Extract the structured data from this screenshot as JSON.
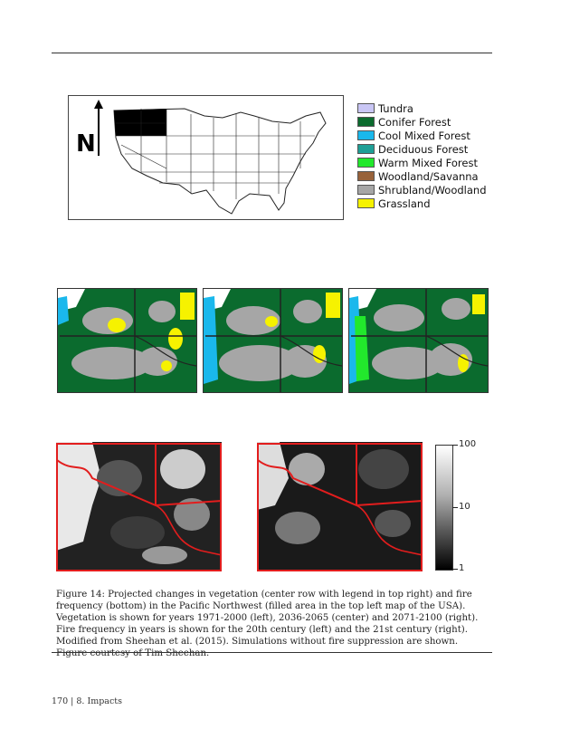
{
  "legend": {
    "items": [
      {
        "label": "Tundra",
        "color": "#c9c6f5"
      },
      {
        "label": "Conifer Forest",
        "color": "#0b6b2e"
      },
      {
        "label": "Cool Mixed Forest",
        "color": "#1ab8ec"
      },
      {
        "label": "Deciduous Forest",
        "color": "#1e9f96"
      },
      {
        "label": "Warm Mixed Forest",
        "color": "#22e82c"
      },
      {
        "label": "Woodland/Savanna",
        "color": "#98623a"
      },
      {
        "label": "Shrubland/Woodland",
        "color": "#a6a6a6"
      },
      {
        "label": "Grassland",
        "color": "#f6f200"
      }
    ]
  },
  "usmap": {
    "north_label": "N"
  },
  "colorbar": {
    "labels": [
      "100",
      "10",
      "1"
    ]
  },
  "caption": "Figure 14: Projected changes in vegetation (center row with legend in top right) and fire frequency (bottom) in the Pacific Northwest (filled area in the top left map of the USA). Vegetation is shown for years 1971-2000 (left), 2036-2065 (center) and 2071-2100 (right). Fire frequency in years is shown for the 20th century (left) and the 21st century (right). Modified from Sheehan et al. (2015). Simulations without fire suppression are shown. Figure courtesy of Tim Sheehan.",
  "footer": "170 | 8. Impacts"
}
